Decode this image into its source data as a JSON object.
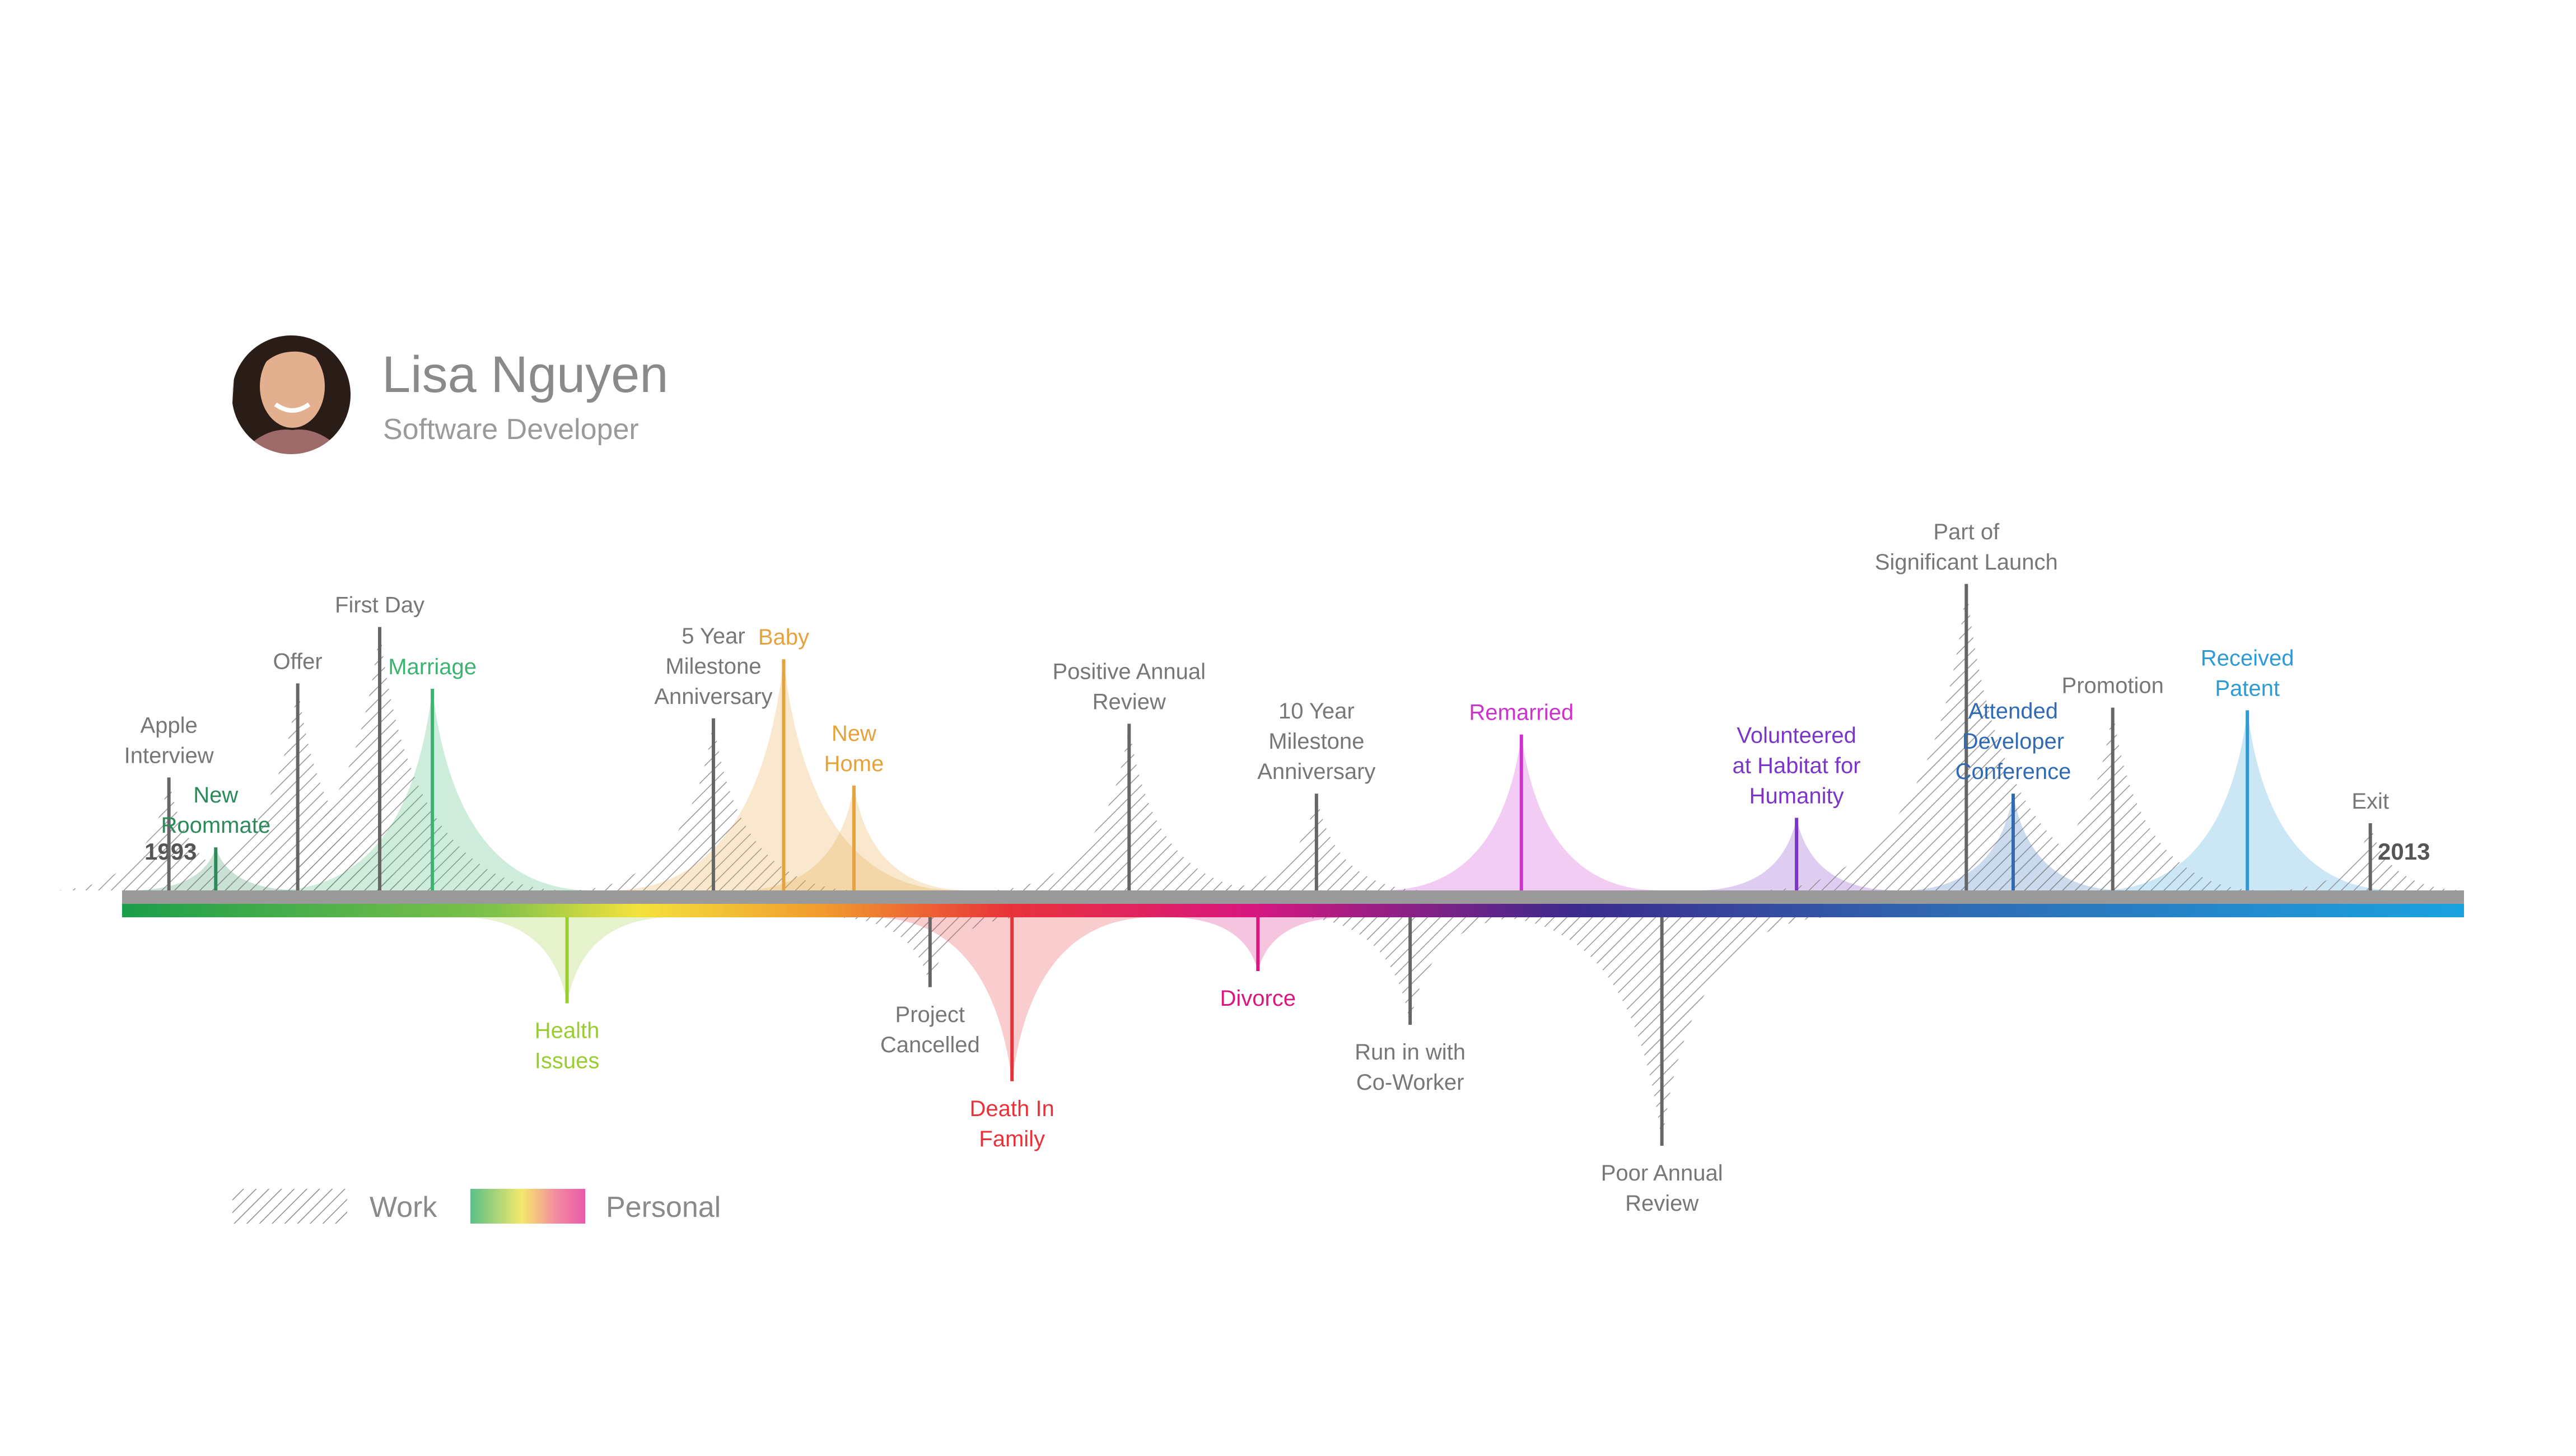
{
  "profile": {
    "name": "Lisa Nguyen",
    "role": "Software Developer",
    "avatar_icon": "person-avatar-icon"
  },
  "timeline": {
    "start_year": "1993",
    "end_year": "2013",
    "year_range": [
      1993,
      2013
    ]
  },
  "legend": {
    "work_label": "Work",
    "personal_label": "Personal"
  },
  "colors": {
    "work": "#666666",
    "axis_gray": "#999999",
    "text_gray": "#777777",
    "gradient": [
      "#1a9e4a",
      "#7fc24a",
      "#f4e23c",
      "#f19a2d",
      "#e8323a",
      "#d9177f",
      "#3b2a8c",
      "#2f6ab3",
      "#1aa3e0"
    ]
  },
  "chart_data": {
    "type": "timeline",
    "title": "Lisa Nguyen",
    "subtitle": "Software Developer",
    "x_range": [
      1993,
      2013
    ],
    "y_range": [
      -1,
      1
    ],
    "y_meaning": "above axis = positive, below axis = negative",
    "events": [
      {
        "label_lines": [
          "Apple",
          "Interview"
        ],
        "year": 1993.4,
        "magnitude": 0.42,
        "kind": "work",
        "color": "#666666"
      },
      {
        "label_lines": [
          "New",
          "Roommate"
        ],
        "year": 1993.8,
        "magnitude": 0.16,
        "kind": "personal",
        "color": "#2b8a57"
      },
      {
        "label_lines": [
          "Offer"
        ],
        "year": 1994.5,
        "magnitude": 0.77,
        "kind": "work",
        "color": "#666666"
      },
      {
        "label_lines": [
          "First Day"
        ],
        "year": 1995.2,
        "magnitude": 0.98,
        "kind": "work",
        "color": "#666666"
      },
      {
        "label_lines": [
          "Marriage"
        ],
        "year": 1995.65,
        "magnitude": 0.75,
        "kind": "personal",
        "color": "#3cb371"
      },
      {
        "label_lines": [
          "Health",
          "Issues"
        ],
        "year": 1996.8,
        "magnitude": -0.32,
        "kind": "personal",
        "color": "#9acd32"
      },
      {
        "label_lines": [
          "5 Year",
          "Milestone",
          "Anniversary"
        ],
        "year": 1998.05,
        "magnitude": 0.64,
        "kind": "work",
        "color": "#666666"
      },
      {
        "label_lines": [
          "Baby"
        ],
        "year": 1998.65,
        "magnitude": 0.86,
        "kind": "personal",
        "color": "#e6a23c"
      },
      {
        "label_lines": [
          "New",
          "Home"
        ],
        "year": 1999.25,
        "magnitude": 0.39,
        "kind": "personal",
        "color": "#e6a23c"
      },
      {
        "label_lines": [
          "Project",
          "Cancelled"
        ],
        "year": 1999.9,
        "magnitude": -0.26,
        "kind": "work",
        "color": "#666666"
      },
      {
        "label_lines": [
          "Death In",
          "Family"
        ],
        "year": 2000.6,
        "magnitude": -0.61,
        "kind": "personal",
        "color": "#e8323a"
      },
      {
        "label_lines": [
          "Positive Annual",
          "Review"
        ],
        "year": 2001.6,
        "magnitude": 0.62,
        "kind": "work",
        "color": "#666666"
      },
      {
        "label_lines": [
          "Divorce"
        ],
        "year": 2002.7,
        "magnitude": -0.2,
        "kind": "personal",
        "color": "#d9177f"
      },
      {
        "label_lines": [
          "10 Year",
          "Milestone",
          "Anniversary"
        ],
        "year": 2003.2,
        "magnitude": 0.36,
        "kind": "work",
        "color": "#666666"
      },
      {
        "label_lines": [
          "Run in with",
          "Co-Worker"
        ],
        "year": 2004.0,
        "magnitude": -0.4,
        "kind": "work",
        "color": "#666666"
      },
      {
        "label_lines": [
          "Remarried"
        ],
        "year": 2004.95,
        "magnitude": 0.58,
        "kind": "personal",
        "color": "#cc33cc"
      },
      {
        "label_lines": [
          "Poor Annual",
          "Review"
        ],
        "year": 2006.15,
        "magnitude": -0.85,
        "kind": "work",
        "color": "#666666"
      },
      {
        "label_lines": [
          "Volunteered",
          "at Habitat for",
          "Humanity"
        ],
        "year": 2007.3,
        "magnitude": 0.27,
        "kind": "personal",
        "color": "#7b35c9"
      },
      {
        "label_lines": [
          "Part of",
          "Significant Launch"
        ],
        "year": 2008.75,
        "magnitude": 1.14,
        "kind": "work",
        "color": "#666666"
      },
      {
        "label_lines": [
          "Attended",
          "Developer",
          "Conference"
        ],
        "year": 2009.15,
        "magnitude": 0.36,
        "kind": "personal",
        "color": "#2f6ab3"
      },
      {
        "label_lines": [
          "Promotion"
        ],
        "year": 2010.0,
        "magnitude": 0.68,
        "kind": "work",
        "color": "#666666"
      },
      {
        "label_lines": [
          "Received",
          "Patent"
        ],
        "year": 2011.15,
        "magnitude": 0.67,
        "kind": "personal",
        "color": "#2e9bd6"
      },
      {
        "label_lines": [
          "Exit"
        ],
        "year": 2012.2,
        "magnitude": 0.25,
        "kind": "work",
        "color": "#666666"
      }
    ]
  }
}
